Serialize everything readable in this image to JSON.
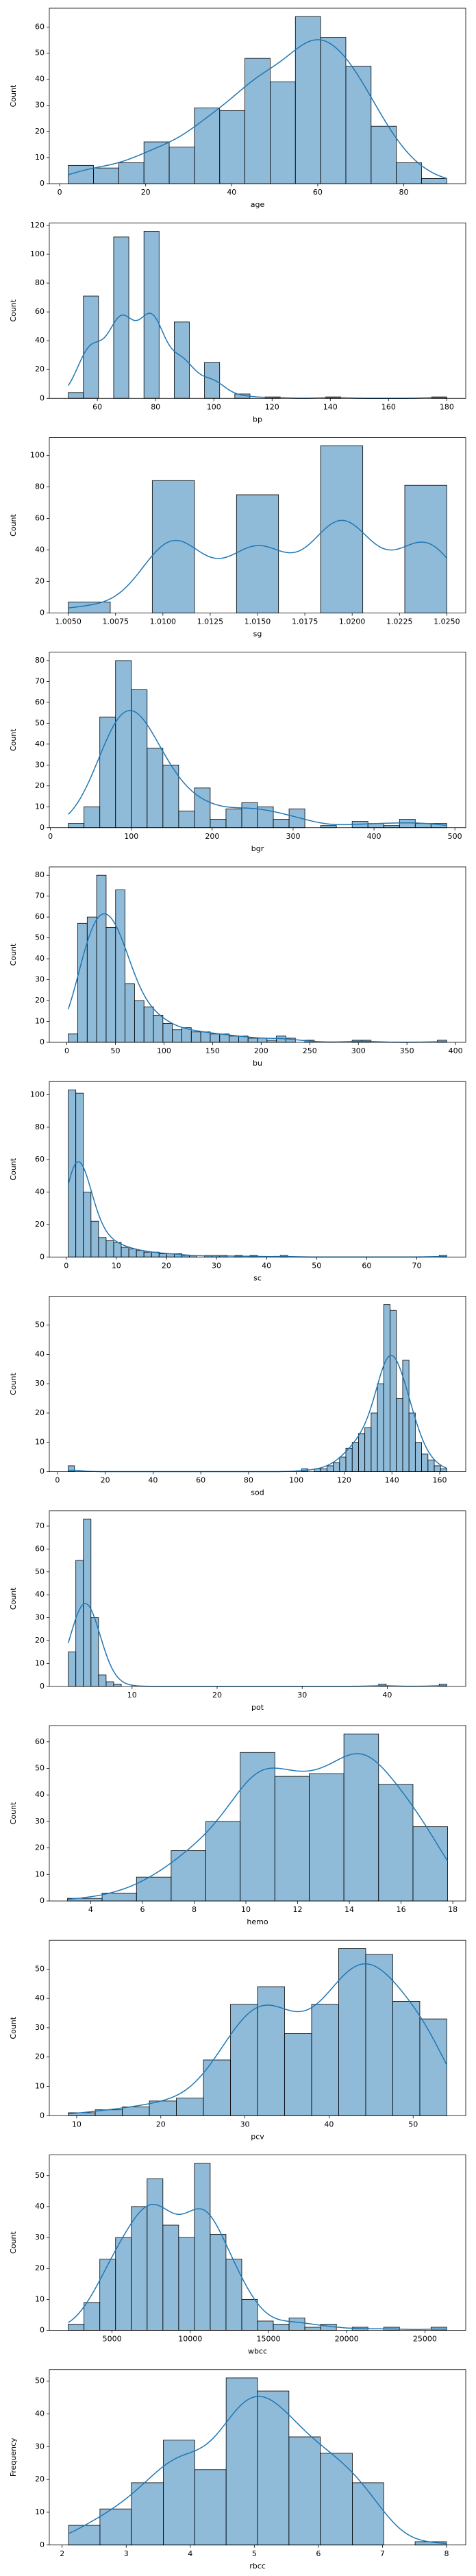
{
  "chart_data": [
    {
      "type": "histogram",
      "xlabel": "age",
      "ylabel": "Count",
      "color": "#1f77b4",
      "kde": true,
      "bins": [
        2,
        7.87,
        13.73,
        19.6,
        25.47,
        31.33,
        37.2,
        43.07,
        48.93,
        54.8,
        60.67,
        66.53,
        72.4,
        78.27,
        84.13,
        90
      ],
      "counts": [
        7,
        6,
        8,
        16,
        14,
        29,
        28,
        48,
        39,
        64,
        56,
        45,
        22,
        8,
        2
      ],
      "xlim": [
        -2.4,
        94.4
      ],
      "xticks": [
        0,
        20,
        40,
        60,
        80
      ],
      "ylim": [
        0,
        67.2
      ],
      "yticks": [
        0,
        10,
        20,
        30,
        40,
        50,
        60
      ]
    },
    {
      "type": "histogram",
      "xlabel": "bp",
      "ylabel": "Count",
      "color": "#1f77b4",
      "kde": true,
      "bins": [
        50,
        55.2,
        60.4,
        65.6,
        70.8,
        76,
        81.2,
        86.4,
        91.6,
        96.8,
        102,
        107.2,
        112.4,
        117.6,
        122.8,
        128,
        133.2,
        138.4,
        143.6,
        148.8,
        154,
        159.2,
        164.4,
        169.6,
        174.8,
        180
      ],
      "counts": [
        4,
        71,
        0,
        112,
        0,
        116,
        0,
        53,
        0,
        25,
        0,
        3,
        0,
        1,
        0,
        0,
        0,
        1,
        0,
        0,
        0,
        0,
        0,
        0,
        1
      ],
      "xlim": [
        43.5,
        186.5
      ],
      "xticks": [
        60,
        80,
        100,
        120,
        140,
        160,
        180
      ],
      "ylim": [
        0,
        121.8
      ],
      "yticks": [
        0,
        20,
        40,
        60,
        80,
        100,
        120
      ]
    },
    {
      "type": "histogram",
      "xlabel": "sg",
      "ylabel": "Count",
      "color": "#1f77b4",
      "kde": true,
      "bins": [
        1.005,
        1.00722,
        1.00944,
        1.01167,
        1.01389,
        1.01611,
        1.01833,
        1.02056,
        1.02278,
        1.025
      ],
      "counts": [
        7,
        0,
        84,
        0,
        75,
        0,
        106,
        0,
        81
      ],
      "xlim": [
        1.004,
        1.026
      ],
      "xticks": [
        {
          "value": 1.005,
          "label": "1.0050"
        },
        {
          "value": 1.0075,
          "label": "1.0075"
        },
        {
          "value": 1.01,
          "label": "1.0100"
        },
        {
          "value": 1.0125,
          "label": "1.0125"
        },
        {
          "value": 1.015,
          "label": "1.0150"
        },
        {
          "value": 1.0175,
          "label": "1.0175"
        },
        {
          "value": 1.02,
          "label": "1.0200"
        },
        {
          "value": 1.0225,
          "label": "1.0225"
        },
        {
          "value": 1.025,
          "label": "1.0250"
        }
      ],
      "ylim": [
        0,
        111.3
      ],
      "yticks": [
        0,
        20,
        40,
        60,
        80,
        100
      ]
    },
    {
      "type": "histogram",
      "xlabel": "bgr",
      "ylabel": "Count",
      "color": "#1f77b4",
      "kde": true,
      "bins": [
        22,
        41.5,
        61,
        80.5,
        100,
        119.5,
        139,
        158.5,
        178,
        197.5,
        217,
        236.5,
        256,
        275.5,
        295,
        314.5,
        334,
        353.5,
        373,
        392.5,
        412,
        431.5,
        451,
        470.5,
        490
      ],
      "counts": [
        2,
        10,
        53,
        80,
        66,
        38,
        30,
        8,
        19,
        4,
        9,
        12,
        10,
        4,
        9,
        0,
        1,
        0,
        3,
        2,
        1,
        4,
        2,
        2
      ],
      "xlim": [
        -1.4,
        513.4
      ],
      "xticks": [
        0,
        100,
        200,
        300,
        400,
        500
      ],
      "ylim": [
        0,
        84
      ],
      "yticks": [
        0,
        10,
        20,
        30,
        40,
        50,
        60,
        70,
        80
      ]
    },
    {
      "type": "histogram",
      "xlabel": "bu",
      "ylabel": "Count",
      "color": "#1f77b4",
      "kde": true,
      "bins": [
        1.5,
        11.24,
        20.98,
        30.71,
        40.45,
        50.19,
        59.92,
        69.66,
        79.4,
        89.14,
        98.88,
        108.61,
        118.35,
        128.09,
        137.82,
        147.56,
        157.3,
        167.04,
        176.78,
        186.51,
        196.25,
        205.99,
        215.72,
        225.46,
        235.2,
        244.94,
        254.68,
        264.41,
        274.15,
        283.89,
        293.62,
        303.36,
        313.1,
        322.84,
        332.58,
        342.31,
        352.05,
        361.79,
        371.52,
        381.26,
        391
      ],
      "counts": [
        4,
        57,
        60,
        80,
        55,
        73,
        28,
        20,
        17,
        13,
        9,
        6,
        7,
        5,
        5,
        4,
        4,
        3,
        3,
        2,
        2,
        1,
        3,
        2,
        0,
        1,
        0,
        0,
        0,
        0,
        1,
        1,
        0,
        0,
        0,
        0,
        0,
        0,
        0,
        1
      ],
      "xlim": [
        -18,
        410.5
      ],
      "xticks": [
        0,
        50,
        100,
        150,
        200,
        250,
        300,
        350,
        400
      ],
      "ylim": [
        0,
        84
      ],
      "yticks": [
        0,
        10,
        20,
        30,
        40,
        50,
        60,
        70,
        80
      ]
    },
    {
      "type": "histogram",
      "xlabel": "sc",
      "ylabel": "Count",
      "color": "#1f77b4",
      "kde": true,
      "bins": [
        0.4,
        1.91,
        3.42,
        4.94,
        6.45,
        7.96,
        9.47,
        10.98,
        12.5,
        14.01,
        15.52,
        17.03,
        18.54,
        20.06,
        21.57,
        23.08,
        24.59,
        26.1,
        27.62,
        29.13,
        30.64,
        32.15,
        33.66,
        35.18,
        36.69,
        38.2,
        39.71,
        41.22,
        42.74,
        44.25,
        45.76,
        47.27,
        48.78,
        50.3,
        51.81,
        53.32,
        54.83,
        56.34,
        57.86,
        59.37,
        60.88,
        62.39,
        63.9,
        65.42,
        66.93,
        68.44,
        69.95,
        71.46,
        72.98,
        74.49,
        76
      ],
      "counts": [
        103,
        101,
        40,
        22,
        12,
        10,
        9,
        6,
        5,
        4,
        3,
        3,
        2,
        2,
        2,
        1,
        1,
        0,
        1,
        1,
        1,
        0,
        1,
        0,
        1,
        0,
        0,
        0,
        1,
        0,
        0,
        0,
        0,
        0,
        0,
        0,
        0,
        0,
        0,
        0,
        0,
        0,
        0,
        0,
        0,
        0,
        0,
        0,
        0,
        1
      ],
      "xlim": [
        -3.38,
        79.78
      ],
      "xticks": [
        0,
        10,
        20,
        30,
        40,
        50,
        60,
        70
      ],
      "ylim": [
        0,
        108.15
      ],
      "yticks": [
        0,
        20,
        40,
        60,
        80,
        100
      ]
    },
    {
      "type": "histogram",
      "xlabel": "sod",
      "ylabel": "Count",
      "color": "#1f77b4",
      "kde": true,
      "bins": [
        4.5,
        7.14,
        9.78,
        12.43,
        15.07,
        17.71,
        20.35,
        22.99,
        25.63,
        28.28,
        30.92,
        33.56,
        36.2,
        38.84,
        41.48,
        44.13,
        46.77,
        49.41,
        52.05,
        54.69,
        57.33,
        59.98,
        62.62,
        65.26,
        67.9,
        70.54,
        73.18,
        75.83,
        78.47,
        81.11,
        83.75,
        86.39,
        89.03,
        91.68,
        94.32,
        96.96,
        99.6,
        102.24,
        104.88,
        107.53,
        110.17,
        112.81,
        115.45,
        118.09,
        120.73,
        123.38,
        126.02,
        128.66,
        131.3,
        133.94,
        136.58,
        139.23,
        141.87,
        144.51,
        147.15,
        149.79,
        152.43,
        155.08,
        157.72,
        160.36,
        163
      ],
      "counts": [
        2,
        0,
        0,
        0,
        0,
        0,
        0,
        0,
        0,
        0,
        0,
        0,
        0,
        0,
        0,
        0,
        0,
        0,
        0,
        0,
        0,
        0,
        0,
        0,
        0,
        0,
        0,
        0,
        0,
        0,
        0,
        0,
        0,
        0,
        0,
        0,
        0,
        1,
        0,
        1,
        1,
        2,
        3,
        5,
        8,
        10,
        13,
        15,
        20,
        30,
        57,
        55,
        25,
        38,
        20,
        10,
        6,
        4,
        2,
        1
      ],
      "xlim": [
        -3.4,
        170.9
      ],
      "xticks": [
        0,
        20,
        40,
        60,
        80,
        100,
        120,
        140,
        160
      ],
      "ylim": [
        0,
        59.85
      ],
      "yticks": [
        0,
        10,
        20,
        30,
        40,
        50
      ]
    },
    {
      "type": "histogram",
      "xlabel": "pot",
      "ylabel": "Count",
      "color": "#1f77b4",
      "kde": true,
      "bins": [
        2.5,
        3.39,
        4.28,
        5.17,
        6.06,
        6.95,
        7.84,
        8.73,
        9.62,
        10.51,
        11.4,
        12.29,
        13.18,
        14.07,
        14.96,
        15.85,
        16.74,
        17.63,
        18.52,
        19.41,
        20.3,
        21.19,
        22.08,
        22.97,
        23.86,
        24.75,
        25.64,
        26.53,
        27.42,
        28.31,
        29.2,
        30.09,
        30.98,
        31.87,
        32.76,
        33.65,
        34.54,
        35.43,
        36.32,
        37.21,
        38.1,
        38.99,
        39.88,
        40.77,
        41.66,
        42.55,
        43.44,
        44.33,
        45.22,
        46.11,
        47
      ],
      "counts": [
        15,
        55,
        73,
        30,
        5,
        2,
        1,
        0,
        0,
        0,
        0,
        0,
        0,
        0,
        0,
        0,
        0,
        0,
        0,
        0,
        0,
        0,
        0,
        0,
        0,
        0,
        0,
        0,
        0,
        0,
        0,
        0,
        0,
        0,
        0,
        0,
        0,
        0,
        0,
        0,
        0,
        1,
        0,
        0,
        0,
        0,
        0,
        0,
        0,
        1
      ],
      "xlim": [
        0.275,
        49.225
      ],
      "xticks": [
        10,
        20,
        30,
        40
      ],
      "ylim": [
        0,
        76.65
      ],
      "yticks": [
        0,
        10,
        20,
        30,
        40,
        50,
        60,
        70
      ]
    },
    {
      "type": "histogram",
      "xlabel": "hemo",
      "ylabel": "Count",
      "color": "#1f77b4",
      "kde": true,
      "bins": [
        3.1,
        4.44,
        5.77,
        7.11,
        8.45,
        9.78,
        11.12,
        12.45,
        13.79,
        15.13,
        16.46,
        17.8
      ],
      "counts": [
        1,
        3,
        9,
        19,
        30,
        56,
        47,
        48,
        63,
        44,
        28
      ],
      "xlim": [
        2.4,
        18.5
      ],
      "xticks": [
        4,
        6,
        8,
        10,
        12,
        14,
        16,
        18
      ],
      "ylim": [
        0,
        66.15
      ],
      "yticks": [
        0,
        10,
        20,
        30,
        40,
        50,
        60
      ]
    },
    {
      "type": "histogram",
      "xlabel": "pcv",
      "ylabel": "Count",
      "color": "#1f77b4",
      "kde": true,
      "bins": [
        9,
        12.21,
        15.43,
        18.64,
        21.86,
        25.07,
        28.29,
        31.5,
        34.71,
        37.93,
        41.14,
        44.36,
        47.57,
        50.79,
        54
      ],
      "counts": [
        1,
        2,
        3,
        5,
        6,
        19,
        38,
        44,
        28,
        38,
        57,
        55,
        39,
        33
      ],
      "xlim": [
        6.75,
        56.25
      ],
      "xticks": [
        10,
        20,
        30,
        40,
        50
      ],
      "ylim": [
        0,
        59.85
      ],
      "yticks": [
        0,
        10,
        20,
        30,
        40,
        50
      ]
    },
    {
      "type": "histogram",
      "xlabel": "wbcc",
      "ylabel": "Count",
      "color": "#1f77b4",
      "kde": true,
      "bins": [
        2200,
        3208,
        4217,
        5225,
        6233,
        7242,
        8250,
        9258,
        10267,
        11275,
        12283,
        13292,
        14300,
        15308,
        16317,
        17325,
        18333,
        19342,
        20350,
        21358,
        22367,
        23375,
        24383,
        25392,
        26400
      ],
      "counts": [
        2,
        9,
        23,
        30,
        40,
        49,
        34,
        30,
        54,
        31,
        23,
        10,
        3,
        2,
        4,
        1,
        2,
        0,
        1,
        0,
        1,
        0,
        0,
        1
      ],
      "xlim": [
        990,
        27610
      ],
      "xticks": [
        5000,
        10000,
        15000,
        20000,
        25000
      ],
      "ylim": [
        0,
        56.7
      ],
      "yticks": [
        0,
        10,
        20,
        30,
        40,
        50
      ]
    },
    {
      "type": "histogram",
      "xlabel": "rbcc",
      "ylabel": "Frequency",
      "color": "#1f77b4",
      "kde": true,
      "bins": [
        2.1,
        2.59,
        3.08,
        3.58,
        4.07,
        4.56,
        5.05,
        5.54,
        6.03,
        6.53,
        7.02,
        7.51,
        8
      ],
      "counts": [
        6,
        11,
        19,
        32,
        23,
        51,
        47,
        33,
        28,
        19,
        0,
        1
      ],
      "xlim": [
        1.8,
        8.3
      ],
      "xticks": [
        2,
        3,
        4,
        5,
        6,
        7,
        8
      ],
      "ylim": [
        0,
        53.55
      ],
      "yticks": [
        0,
        10,
        20,
        30,
        40,
        50
      ]
    }
  ]
}
